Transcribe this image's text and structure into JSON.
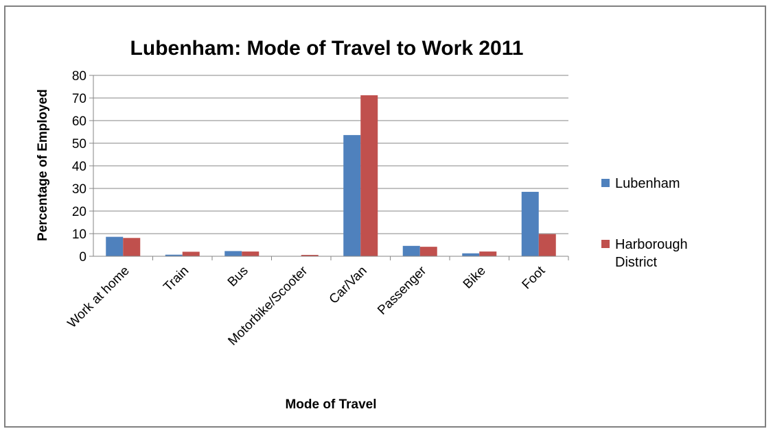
{
  "chart_data": {
    "type": "bar",
    "title": "Lubenham: Mode of Travel to Work 2011",
    "xlabel": "Mode of Travel",
    "ylabel": "Percentage of Employed",
    "ylim": [
      0,
      80
    ],
    "yticks": [
      0,
      10,
      20,
      30,
      40,
      50,
      60,
      70,
      80
    ],
    "grid": true,
    "legend_position": "right",
    "categories": [
      "Work at home",
      "Train",
      "Bus",
      "Motorbike/Scooter",
      "Car/Van",
      "Passenger",
      "Bike",
      "Foot"
    ],
    "series": [
      {
        "name": "Lubenham",
        "color": "#4f81bd",
        "values": [
          8.6,
          0.7,
          2.3,
          0.1,
          53.6,
          4.6,
          1.3,
          28.5
        ]
      },
      {
        "name": "Harborough District",
        "legend_lines": [
          "Harborough",
          "District"
        ],
        "color": "#c0504d",
        "values": [
          8.1,
          2.0,
          2.1,
          0.6,
          71.2,
          4.2,
          2.1,
          9.8
        ]
      }
    ]
  }
}
